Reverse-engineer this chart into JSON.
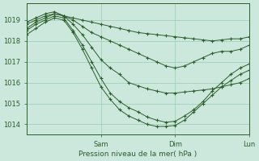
{
  "title": "",
  "xlabel": "Pression niveau de la mer( hPa )",
  "ylabel": "",
  "bg_color": "#cce8dc",
  "grid_color": "#99ccb0",
  "line_color": "#2a5e2a",
  "marker_color": "#2a5e2a",
  "ylim": [
    1013.5,
    1019.8
  ],
  "yticks": [
    1014,
    1015,
    1016,
    1017,
    1018,
    1019
  ],
  "xlim": [
    0,
    72
  ],
  "xtick_positions": [
    24,
    48,
    72
  ],
  "xtick_labels": [
    "Sam",
    "Dim",
    "Lun"
  ],
  "lines": [
    {
      "x": [
        0,
        3,
        6,
        9,
        12,
        15,
        18,
        21,
        24,
        27,
        30,
        33,
        36,
        39,
        42,
        45,
        48,
        51,
        54,
        57,
        60,
        63,
        66,
        69,
        72
      ],
      "y": [
        1018.8,
        1019.0,
        1019.2,
        1019.3,
        1019.2,
        1019.1,
        1019.0,
        1018.9,
        1018.8,
        1018.7,
        1018.6,
        1018.5,
        1018.4,
        1018.35,
        1018.3,
        1018.25,
        1018.2,
        1018.15,
        1018.1,
        1018.05,
        1018.0,
        1018.05,
        1018.1,
        1018.1,
        1018.2
      ]
    },
    {
      "x": [
        0,
        3,
        6,
        9,
        12,
        15,
        18,
        21,
        24,
        27,
        30,
        33,
        36,
        39,
        42,
        45,
        48,
        51,
        54,
        57,
        60,
        63,
        66,
        69,
        72
      ],
      "y": [
        1018.9,
        1019.1,
        1019.3,
        1019.4,
        1019.2,
        1019.0,
        1018.7,
        1018.4,
        1018.2,
        1018.0,
        1017.8,
        1017.6,
        1017.4,
        1017.2,
        1017.0,
        1016.8,
        1016.7,
        1016.8,
        1017.0,
        1017.2,
        1017.4,
        1017.5,
        1017.5,
        1017.6,
        1017.8
      ]
    },
    {
      "x": [
        0,
        3,
        6,
        9,
        12,
        15,
        18,
        21,
        24,
        27,
        30,
        33,
        36,
        39,
        42,
        45,
        48,
        51,
        54,
        57,
        60,
        63,
        66,
        69,
        72
      ],
      "y": [
        1018.6,
        1018.9,
        1019.1,
        1019.3,
        1019.2,
        1018.8,
        1018.3,
        1017.7,
        1017.1,
        1016.7,
        1016.4,
        1016.0,
        1015.85,
        1015.7,
        1015.6,
        1015.5,
        1015.5,
        1015.55,
        1015.6,
        1015.65,
        1015.7,
        1015.8,
        1015.9,
        1016.0,
        1016.2
      ]
    },
    {
      "x": [
        0,
        3,
        6,
        9,
        12,
        15,
        18,
        21,
        24,
        27,
        30,
        33,
        36,
        39,
        42,
        45,
        48,
        51,
        54,
        57,
        60,
        63,
        66,
        69,
        72
      ],
      "y": [
        1018.5,
        1018.8,
        1019.0,
        1019.2,
        1019.1,
        1018.5,
        1017.8,
        1017.0,
        1016.2,
        1015.5,
        1015.1,
        1014.8,
        1014.6,
        1014.35,
        1014.2,
        1014.1,
        1014.15,
        1014.4,
        1014.7,
        1015.1,
        1015.6,
        1016.0,
        1016.4,
        1016.7,
        1016.9
      ]
    },
    {
      "x": [
        0,
        3,
        6,
        9,
        12,
        15,
        18,
        21,
        24,
        27,
        30,
        33,
        36,
        39,
        42,
        45,
        48,
        51,
        54,
        57,
        60,
        63,
        66,
        69,
        72
      ],
      "y": [
        1018.3,
        1018.6,
        1018.9,
        1019.1,
        1019.0,
        1018.4,
        1017.6,
        1016.7,
        1015.8,
        1015.2,
        1014.7,
        1014.4,
        1014.2,
        1014.0,
        1013.9,
        1013.9,
        1013.95,
        1014.2,
        1014.6,
        1015.0,
        1015.4,
        1015.8,
        1016.1,
        1016.4,
        1016.6
      ]
    }
  ]
}
